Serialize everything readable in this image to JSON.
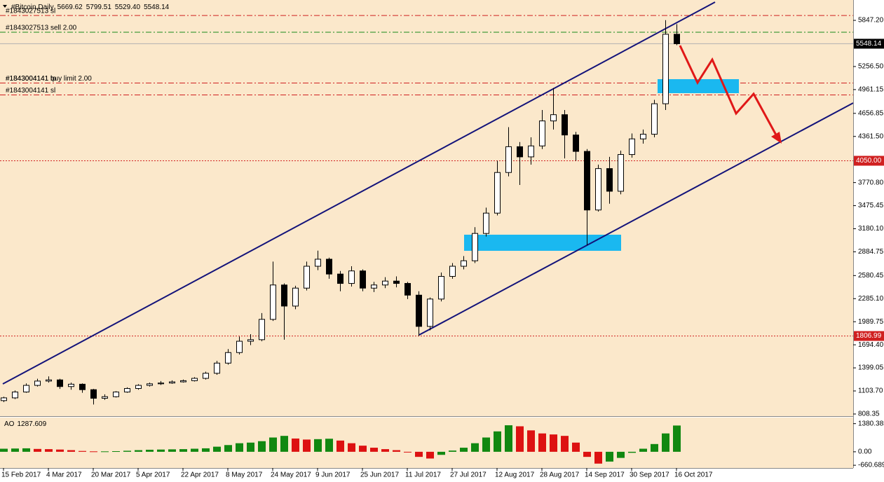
{
  "chart_data": {
    "type": "candlestick",
    "title": "#Bitcoin,Daily",
    "ohlc_labels": [
      "5669.62",
      "5799.51",
      "5529.40",
      "5548.14"
    ],
    "background": "#fbe8cb",
    "ylim": [
      790,
      6090
    ],
    "yticks": [
      {
        "value": 5847.2,
        "label": "5847.20"
      },
      {
        "value": 5256.5,
        "label": "5256.50"
      },
      {
        "value": 4961.15,
        "label": "4961.15"
      },
      {
        "value": 4656.85,
        "label": "4656.85"
      },
      {
        "value": 4361.5,
        "label": "4361.50"
      },
      {
        "value": 3770.8,
        "label": "3770.80"
      },
      {
        "value": 3475.45,
        "label": "3475.45"
      },
      {
        "value": 3180.1,
        "label": "3180.10"
      },
      {
        "value": 2884.75,
        "label": "2884.75"
      },
      {
        "value": 2580.45,
        "label": "2580.45"
      },
      {
        "value": 2285.1,
        "label": "2285.10"
      },
      {
        "value": 1989.75,
        "label": "1989.75"
      },
      {
        "value": 1694.4,
        "label": "1694.40"
      },
      {
        "value": 1399.05,
        "label": "1399.05"
      },
      {
        "value": 1103.7,
        "label": "1103.70"
      },
      {
        "value": 808.35,
        "label": "808.35"
      }
    ],
    "xtick_labels": [
      "15 Feb 2017",
      "4 Mar 2017",
      "20 Mar 2017",
      "5 Apr 2017",
      "22 Apr 2017",
      "8 May 2017",
      "24 May 2017",
      "9 Jun 2017",
      "25 Jun 2017",
      "11 Jul 2017",
      "27 Jul 2017",
      "12 Aug 2017",
      "28 Aug 2017",
      "14 Sep 2017",
      "30 Sep 2017",
      "16 Oct 2017"
    ],
    "open": [
      980,
      1015,
      1090,
      1175,
      1230,
      1245,
      1160,
      1190,
      1120,
      1010,
      1030,
      1090,
      1135,
      1175,
      1195,
      1205,
      1220,
      1235,
      1265,
      1330,
      1460,
      1595,
      1740,
      1760,
      2020,
      2460,
      2190,
      2420,
      2700,
      2790,
      2600,
      2480,
      2640,
      2420,
      2460,
      2510,
      2480,
      2330,
      1930,
      2280,
      2570,
      2700,
      2770,
      3120,
      3380,
      3900,
      4230,
      4100,
      4240,
      4560,
      4640,
      4380,
      4170,
      3420,
      3950,
      3660,
      4130,
      4330,
      4390,
      4780,
      5669.62
    ],
    "high": [
      1030,
      1110,
      1200,
      1260,
      1290,
      1260,
      1210,
      1200,
      1130,
      1060,
      1100,
      1150,
      1190,
      1210,
      1230,
      1240,
      1250,
      1280,
      1350,
      1490,
      1640,
      1800,
      1830,
      2100,
      2760,
      2480,
      2450,
      2760,
      2900,
      2810,
      2640,
      2700,
      2660,
      2500,
      2560,
      2570,
      2500,
      2380,
      2300,
      2620,
      2740,
      2830,
      3200,
      3450,
      4050,
      4480,
      4290,
      4350,
      4700,
      4980,
      4700,
      4420,
      4200,
      4000,
      4100,
      4180,
      4400,
      4450,
      4830,
      5850,
      5799.51
    ],
    "low": [
      960,
      1000,
      1080,
      1160,
      1210,
      1130,
      1120,
      1080,
      930,
      990,
      1020,
      1080,
      1120,
      1160,
      1180,
      1195,
      1210,
      1225,
      1250,
      1310,
      1440,
      1570,
      1690,
      1740,
      2000,
      1760,
      2150,
      2390,
      2650,
      2540,
      2380,
      2440,
      2380,
      2370,
      2420,
      2430,
      2280,
      1806.99,
      1880,
      2250,
      2540,
      2660,
      2740,
      3080,
      3350,
      3850,
      3740,
      4000,
      4200,
      4450,
      4080,
      4050,
      2970,
      3400,
      3500,
      3620,
      4090,
      4270,
      4350,
      4700,
      5529.4
    ],
    "close": [
      1015,
      1090,
      1175,
      1230,
      1245,
      1160,
      1190,
      1120,
      1010,
      1030,
      1090,
      1135,
      1175,
      1195,
      1205,
      1220,
      1235,
      1265,
      1330,
      1460,
      1595,
      1740,
      1760,
      2020,
      2460,
      2190,
      2420,
      2700,
      2790,
      2600,
      2480,
      2640,
      2420,
      2460,
      2510,
      2480,
      2330,
      1930,
      2280,
      2570,
      2700,
      2770,
      3120,
      3380,
      3900,
      4230,
      4100,
      4240,
      4560,
      4640,
      4380,
      4170,
      3420,
      3950,
      3660,
      4130,
      4330,
      4390,
      4780,
      5669.62,
      5548.14
    ],
    "order_lines": [
      {
        "value": 5910,
        "text": "#1843027513 sl",
        "color": "#d02020"
      },
      {
        "value": 5695,
        "text": "#1843027513 sell 2.00",
        "color": "#1a8a1a"
      },
      {
        "value": 5045,
        "text": "#1843004141 buy limit 2.00",
        "color": "#d02020"
      },
      {
        "value": 5045,
        "text": "#1843004141 tp",
        "color": "#d02020"
      },
      {
        "value": 4893,
        "text": "#1843004141 sl",
        "color": "#d02020"
      }
    ],
    "price_line": {
      "label": "5548.14",
      "value": 5548.14,
      "color": "#b0b0b0"
    },
    "hlines": [
      {
        "value": 4050,
        "label": "4050.00",
        "color": "#d02020"
      },
      {
        "value": 1806.99,
        "label": "1806.99",
        "color": "#d02020"
      }
    ],
    "ao": {
      "name": "AO",
      "ylim": [
        -760,
        1610
      ],
      "yticks": [
        {
          "value": 1380.385,
          "label": "1380.385"
        },
        {
          "value": 0,
          "label": "0.00"
        },
        {
          "value": -660.689,
          "label": "-660.689"
        }
      ],
      "up_color": "#118811",
      "down_color": "#dd1111",
      "values": [
        150,
        160,
        170,
        140,
        130,
        110,
        80,
        40,
        20,
        20,
        30,
        50,
        80,
        100,
        110,
        120,
        130,
        150,
        170,
        250,
        330,
        420,
        450,
        520,
        700,
        780,
        650,
        600,
        620,
        640,
        550,
        420,
        300,
        200,
        130,
        80,
        -20,
        -250,
        -330,
        -150,
        60,
        200,
        420,
        700,
        1000,
        1300,
        1250,
        1050,
        900,
        850,
        780,
        450,
        -250,
        -580,
        -480,
        -300,
        -50,
        150,
        380,
        900,
        1287.609
      ]
    }
  }
}
